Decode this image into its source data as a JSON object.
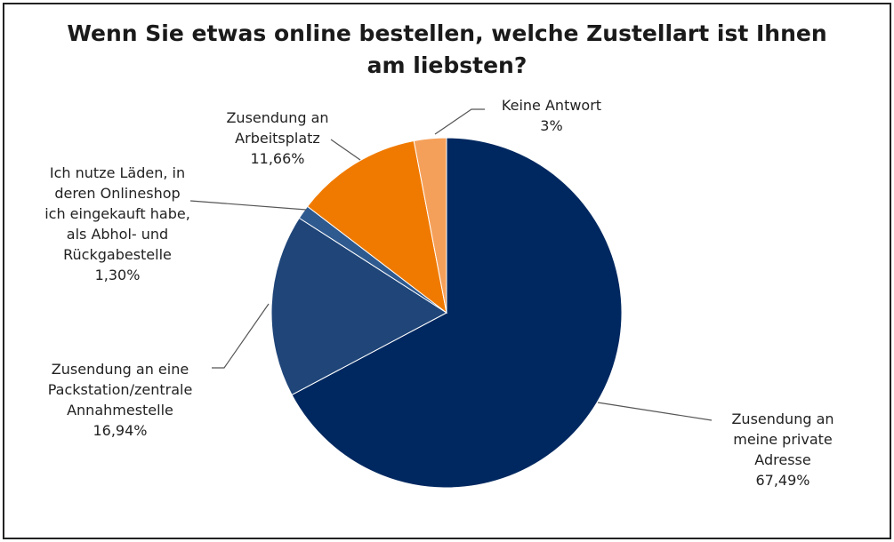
{
  "chart_data": {
    "type": "pie",
    "title_lines": [
      "Wenn Sie etwas online bestellen, welche Zustellart ist Ihnen",
      "am liebsten?"
    ],
    "slices": [
      {
        "label_lines": [
          "Zusendung an",
          "meine private",
          "Adresse"
        ],
        "value_label": "67,49%",
        "value": 67.49,
        "color": "#002860"
      },
      {
        "label_lines": [
          "Zusendung an eine",
          "Packstation/zentrale",
          "Annahmestelle"
        ],
        "value_label": "16,94%",
        "value": 16.94,
        "color": "#1f4579"
      },
      {
        "label_lines": [
          "Ich nutze Läden, in",
          "deren Onlineshop",
          "ich eingekauft habe,",
          "als Abhol- und",
          "Rückgabestelle"
        ],
        "value_label": "1,30%",
        "value": 1.3,
        "color": "#2f5a90"
      },
      {
        "label_lines": [
          "Zusendung an",
          "Arbeitsplatz"
        ],
        "value_label": "11,66%",
        "value": 11.66,
        "color": "#f07a00"
      },
      {
        "label_lines": [
          "Keine Antwort"
        ],
        "value_label": "3%",
        "value": 3.0,
        "color": "#f5a05a"
      }
    ],
    "start": "12 o'clock",
    "direction": "clockwise",
    "legend": "none"
  }
}
